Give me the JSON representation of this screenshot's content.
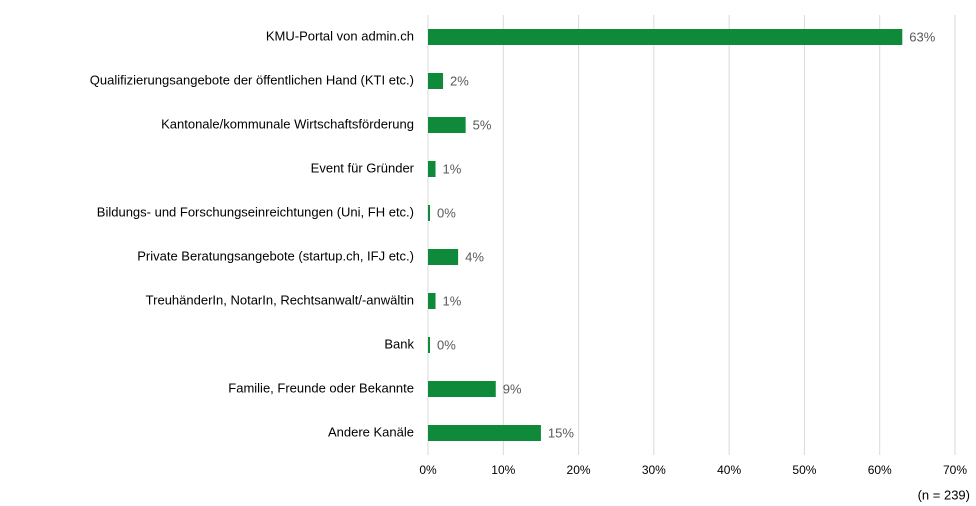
{
  "chart_data": {
    "type": "bar",
    "orientation": "horizontal",
    "categories": [
      "KMU-Portal von admin.ch",
      "Qualifizierungsangebote der öffentlichen Hand (KTI etc.)",
      "Kantonale/kommunale Wirtschaftsförderung",
      "Event für Gründer",
      "Bildungs- und Forschungseinreichtungen (Uni, FH etc.)",
      "Private Beratungsangebote (startup.ch, IFJ etc.)",
      "TreuhänderIn, NotarIn, Rechtsanwalt/-anwältin",
      "Bank",
      "Familie, Freunde oder Bekannte",
      "Andere Kanäle"
    ],
    "values": [
      63,
      2,
      5,
      1,
      0,
      4,
      1,
      0,
      9,
      15
    ],
    "value_labels": [
      "63%",
      "2%",
      "5%",
      "1%",
      "0%",
      "4%",
      "1%",
      "0%",
      "9%",
      "15%"
    ],
    "color": "#0e8a3a",
    "xlim": [
      0,
      70
    ],
    "xticks": [
      {
        "value": 0,
        "label": "0%"
      },
      {
        "value": 10,
        "label": "10%"
      },
      {
        "value": 20,
        "label": "20%"
      },
      {
        "value": 30,
        "label": "30%"
      },
      {
        "value": 40,
        "label": "40%"
      },
      {
        "value": 50,
        "label": "50%"
      },
      {
        "value": 60,
        "label": "60%"
      },
      {
        "value": 70,
        "label": "70%"
      }
    ],
    "grid": true,
    "note": "(n = 239)"
  }
}
